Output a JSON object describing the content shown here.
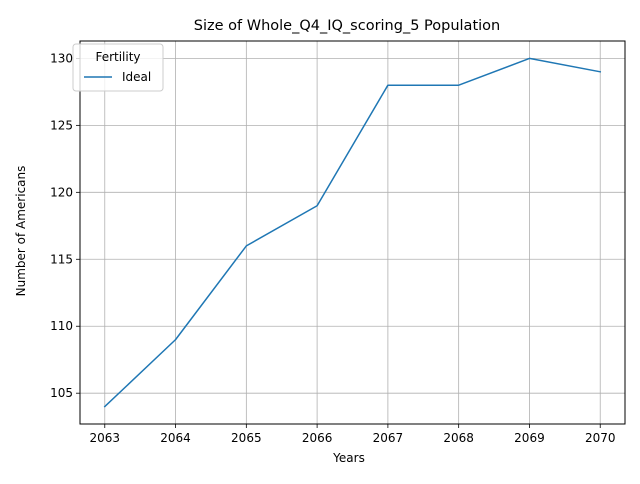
{
  "chart_data": {
    "type": "line",
    "title": "Size of Whole_Q4_IQ_scoring_5 Population",
    "xlabel": "Years",
    "ylabel": "Number of Americans",
    "x": [
      2063,
      2064,
      2065,
      2066,
      2067,
      2068,
      2069,
      2070
    ],
    "xticks": [
      "2063",
      "2064",
      "2065",
      "2066",
      "2067",
      "2068",
      "2069",
      "2070"
    ],
    "yticks": [
      "105",
      "110",
      "115",
      "120",
      "125",
      "130"
    ],
    "xlim": [
      2062.65,
      2070.35
    ],
    "ylim": [
      102.7,
      131.3
    ],
    "grid": true,
    "legend": {
      "title": "Fertility",
      "placement": "top-left"
    },
    "series": [
      {
        "name": "Ideal",
        "color": "#1f77b4",
        "values": [
          104,
          109,
          116,
          119,
          128,
          128,
          130,
          129
        ]
      }
    ]
  }
}
